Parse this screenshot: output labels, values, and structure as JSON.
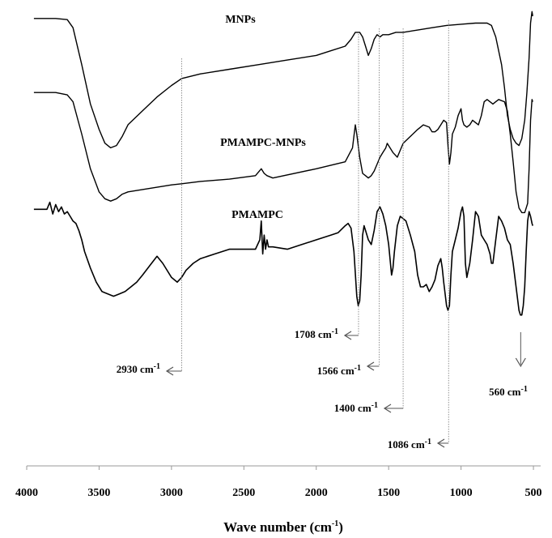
{
  "chart_data": {
    "type": "line",
    "xlabel_main": "Wave number (cm",
    "xlabel_sup": "-1",
    "xlabel_tail": ")",
    "xlim": [
      4000,
      450
    ],
    "x_ticks": [
      4000,
      3500,
      3000,
      2500,
      2000,
      1500,
      1000,
      500
    ],
    "grid": false,
    "line_color": "#000000",
    "series": [
      {
        "name": "MNPs",
        "x": [
          3950,
          3800,
          3720,
          3680,
          3620,
          3560,
          3500,
          3460,
          3420,
          3380,
          3340,
          3300,
          3200,
          3100,
          3000,
          2930,
          2800,
          2600,
          2400,
          2200,
          2000,
          1900,
          1800,
          1760,
          1730,
          1700,
          1680,
          1660,
          1640,
          1620,
          1600,
          1580,
          1560,
          1540,
          1500,
          1450,
          1400,
          1300,
          1200,
          1100,
          1000,
          900,
          820,
          790,
          760,
          720,
          700,
          680,
          660,
          640,
          620,
          600,
          580,
          560,
          545,
          530,
          520,
          510,
          505
        ],
        "y": [
          92,
          92,
          91.5,
          88,
          72,
          55,
          44,
          38,
          36,
          37,
          41,
          46,
          52,
          58,
          63,
          66,
          68,
          70,
          72,
          74,
          76,
          78,
          80,
          83,
          86,
          86,
          84,
          80,
          76,
          79,
          83,
          85,
          84,
          85,
          85,
          86,
          86,
          87,
          88,
          89,
          89.5,
          90,
          90,
          89,
          84,
          72,
          62,
          50,
          44,
          40,
          38,
          37,
          40,
          48,
          60,
          75,
          90,
          95,
          93
        ]
      },
      {
        "name": "PMAMPC-MNPs",
        "x": [
          3950,
          3800,
          3720,
          3680,
          3620,
          3560,
          3500,
          3460,
          3420,
          3380,
          3340,
          3300,
          3200,
          3100,
          3000,
          2930,
          2800,
          2600,
          2420,
          2380,
          2360,
          2340,
          2300,
          2000,
          1800,
          1750,
          1730,
          1720,
          1700,
          1680,
          1660,
          1640,
          1620,
          1600,
          1580,
          1560,
          1540,
          1520,
          1510,
          1490,
          1470,
          1440,
          1400,
          1350,
          1300,
          1260,
          1220,
          1200,
          1180,
          1160,
          1140,
          1120,
          1100,
          1090,
          1080,
          1070,
          1060,
          1040,
          1020,
          1000,
          990,
          980,
          960,
          940,
          920,
          900,
          880,
          860,
          840,
          820,
          800,
          780,
          760,
          740,
          700,
          680,
          660,
          640,
          620,
          600,
          580,
          560,
          540,
          530,
          520,
          510,
          505
        ],
        "y": [
          88,
          88,
          87,
          84,
          70,
          55,
          45,
          42,
          41,
          42,
          44,
          45,
          46,
          47,
          48,
          48.5,
          49.5,
          50.5,
          52,
          55,
          53,
          52,
          51,
          55,
          58,
          64,
          74,
          70,
          60,
          53,
          52,
          51,
          52,
          54,
          57,
          60,
          62,
          64,
          66,
          64,
          62,
          60,
          66,
          69,
          72,
          74,
          73,
          71,
          71,
          72,
          74,
          76,
          75,
          65,
          57,
          62,
          70,
          73,
          78,
          81,
          76,
          74,
          73,
          74,
          76,
          75,
          74,
          78,
          84,
          85,
          84,
          83,
          84,
          85,
          84,
          80,
          70,
          58,
          45,
          38,
          36,
          36,
          40,
          55,
          76,
          85,
          84
        ]
      },
      {
        "name": "PMAMPC",
        "x": [
          3950,
          3860,
          3840,
          3820,
          3800,
          3780,
          3760,
          3740,
          3720,
          3700,
          3680,
          3660,
          3640,
          3620,
          3600,
          3560,
          3520,
          3480,
          3440,
          3400,
          3360,
          3320,
          3280,
          3240,
          3200,
          3150,
          3100,
          3060,
          3000,
          2960,
          2930,
          2900,
          2850,
          2800,
          2700,
          2600,
          2500,
          2420,
          2390,
          2380,
          2370,
          2360,
          2350,
          2340,
          2330,
          2300,
          2200,
          2100,
          2000,
          1900,
          1850,
          1800,
          1780,
          1760,
          1740,
          1720,
          1710,
          1700,
          1690,
          1680,
          1670,
          1660,
          1640,
          1620,
          1600,
          1580,
          1570,
          1560,
          1540,
          1520,
          1500,
          1480,
          1470,
          1460,
          1440,
          1420,
          1400,
          1380,
          1350,
          1320,
          1300,
          1280,
          1260,
          1240,
          1220,
          1200,
          1180,
          1160,
          1140,
          1130,
          1120,
          1100,
          1090,
          1080,
          1070,
          1060,
          1040,
          1020,
          1000,
          990,
          980,
          970,
          960,
          940,
          920,
          900,
          880,
          860,
          840,
          820,
          800,
          790,
          780,
          760,
          740,
          720,
          700,
          680,
          660,
          640,
          620,
          600,
          590,
          580,
          570,
          560,
          550,
          540,
          530,
          520,
          510,
          505
        ],
        "y": [
          73,
          73,
          76,
          71,
          75,
          72,
          74,
          71,
          72,
          70,
          68,
          67,
          64,
          60,
          55,
          48,
          42,
          38,
          37,
          36,
          37,
          38,
          40,
          42,
          45,
          49,
          53,
          50,
          44,
          42,
          44,
          47,
          50,
          52,
          54,
          56,
          56,
          56,
          60,
          68,
          54,
          62,
          56,
          60,
          57,
          57,
          56,
          58,
          60,
          62,
          63,
          66,
          67,
          65,
          55,
          36,
          32,
          34,
          45,
          62,
          66,
          64,
          60,
          58,
          64,
          72,
          73,
          74,
          71,
          66,
          58,
          45,
          48,
          55,
          66,
          70,
          69,
          68,
          62,
          55,
          45,
          40,
          40,
          41,
          38,
          40,
          43,
          49,
          52,
          48,
          42,
          32,
          30,
          32,
          45,
          55,
          60,
          65,
          72,
          74,
          70,
          50,
          44,
          50,
          60,
          72,
          70,
          62,
          60,
          58,
          54,
          50,
          50,
          60,
          70,
          68,
          65,
          60,
          58,
          50,
          40,
          30,
          28,
          28,
          32,
          40,
          55,
          68,
          72,
          70,
          67,
          66
        ]
      }
    ],
    "series_labels": [
      "MNPs",
      "PMAMPC-MNPs",
      "PMAMPC"
    ],
    "annotations": [
      {
        "x": 2930,
        "label": "2930 cm",
        "sup": "-1"
      },
      {
        "x": 1708,
        "label": "1708 cm",
        "sup": "-1"
      },
      {
        "x": 1566,
        "label": "1566 cm",
        "sup": "-1"
      },
      {
        "x": 1400,
        "label": "1400 cm",
        "sup": "-1"
      },
      {
        "x": 1086,
        "label": "1086 cm",
        "sup": "-1"
      },
      {
        "x": 560,
        "label": "560 cm",
        "sup": "-1"
      }
    ]
  }
}
